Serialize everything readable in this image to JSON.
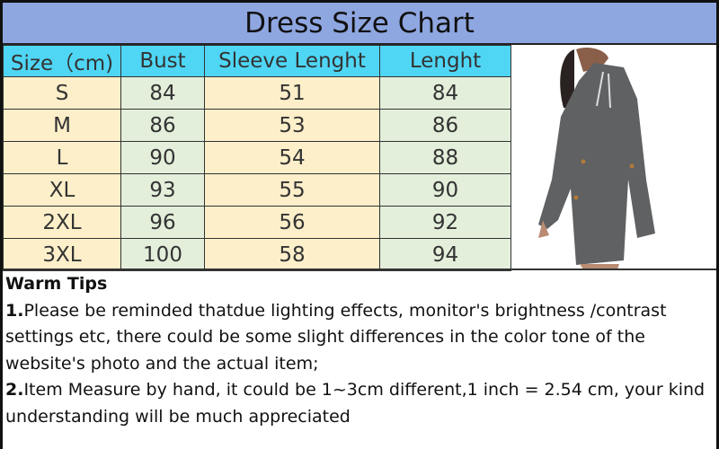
{
  "title": "Dress Size Chart",
  "table": {
    "headers": [
      "Size（cm)",
      "Bust",
      "Sleeve Lenght",
      "Lenght"
    ],
    "rows": [
      [
        "S",
        "84",
        "51",
        "84"
      ],
      [
        "M",
        "86",
        "53",
        "86"
      ],
      [
        "L",
        "90",
        "54",
        "88"
      ],
      [
        "XL",
        "93",
        "55",
        "90"
      ],
      [
        "2XL",
        "96",
        "56",
        "92"
      ],
      [
        "3XL",
        "100",
        "58",
        "94"
      ]
    ]
  },
  "tips": {
    "heading": "Warm Tips",
    "items": [
      {
        "num": "1.",
        "text": "Please be reminded thatdue lighting effects, monitor's brightness /contrast settings etc, there could be some slight differences in the color tone of the website's photo and the actual item;"
      },
      {
        "num": "2.",
        "text": "Item Measure by hand, it could be 1~3cm different,1 inch = 2.54 cm, your kind understanding will be much appreciated"
      }
    ]
  },
  "colors": {
    "title_bg": "#8fa7e1",
    "header_bg": "#4fd6f5",
    "yellow_col": "#fdefc9",
    "green_col": "#e3efda",
    "dress": "#5f6163"
  }
}
